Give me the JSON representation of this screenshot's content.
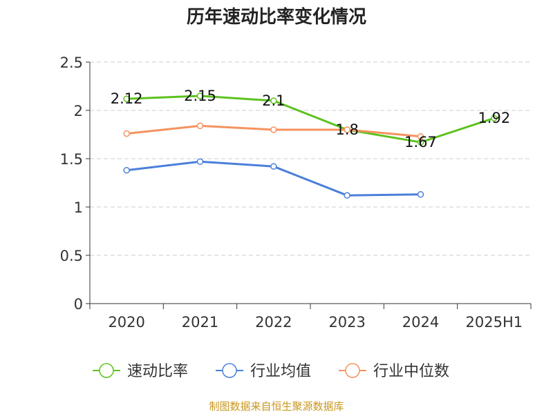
{
  "chart_data": {
    "type": "line",
    "title": "历年速动比率变化情况",
    "categories": [
      "2020",
      "2021",
      "2022",
      "2023",
      "2024",
      "2025H1"
    ],
    "ylim": [
      0,
      2.5
    ],
    "yticks": [
      "0",
      "0.5",
      "1",
      "1.5",
      "2",
      "2.5"
    ],
    "grid": true,
    "legend_position": "bottom",
    "series": [
      {
        "name": "速动比率",
        "color": "#5cc21e",
        "values": [
          2.12,
          2.15,
          2.1,
          1.8,
          1.67,
          1.92
        ],
        "labels": [
          "2.12",
          "2.15",
          "2.1",
          "1.8",
          "1.67",
          "1.92"
        ]
      },
      {
        "name": "行业均值",
        "color": "#4a7fda",
        "values": [
          1.38,
          1.47,
          1.42,
          1.12,
          1.13,
          null
        ]
      },
      {
        "name": "行业中位数",
        "color": "#f5925e",
        "values": [
          1.76,
          1.84,
          1.8,
          1.8,
          1.73,
          null
        ]
      }
    ],
    "source": "制图数据来自恒生聚源数据库"
  }
}
